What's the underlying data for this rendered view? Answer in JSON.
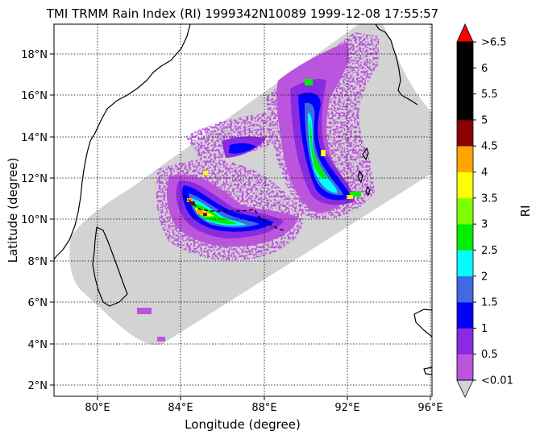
{
  "title": "TMI TRMM Rain Index (RI) 1999342N10089 1999-12-08 17:55:57",
  "xlabel": "Longitude (degree)",
  "ylabel": "Latitude (degree)",
  "colorbar_label": "RI",
  "x_ticks": [
    "80°E",
    "84°E",
    "88°E",
    "92°E",
    "96°E"
  ],
  "y_ticks": [
    "2°N",
    "4°N",
    "6°N",
    "8°N",
    "10°N",
    "12°N",
    "14°N",
    "16°N",
    "18°N"
  ],
  "colorbar": {
    "ticks": [
      "<0.01",
      "0.5",
      "1",
      "1.5",
      "2",
      "2.5",
      "3",
      "3.5",
      "4",
      "4.5",
      "5",
      "5.5",
      "6",
      ">6.5"
    ],
    "colors": [
      "#bb55dd",
      "#8a2be2",
      "#0000ff",
      "#4169e1",
      "#00ffff",
      "#00ee00",
      "#7fff00",
      "#ffff00",
      "#ffa500",
      "#8b0000",
      "#000000",
      "#000000",
      "#000000"
    ],
    "under_color": "#d3d3d3",
    "over_color": "#ff0000"
  },
  "map": {
    "lon_range": [
      77.9,
      96.1
    ],
    "lat_range": [
      1.5,
      19.5
    ],
    "swath_color": "#d3d3d3",
    "grid": true
  }
}
